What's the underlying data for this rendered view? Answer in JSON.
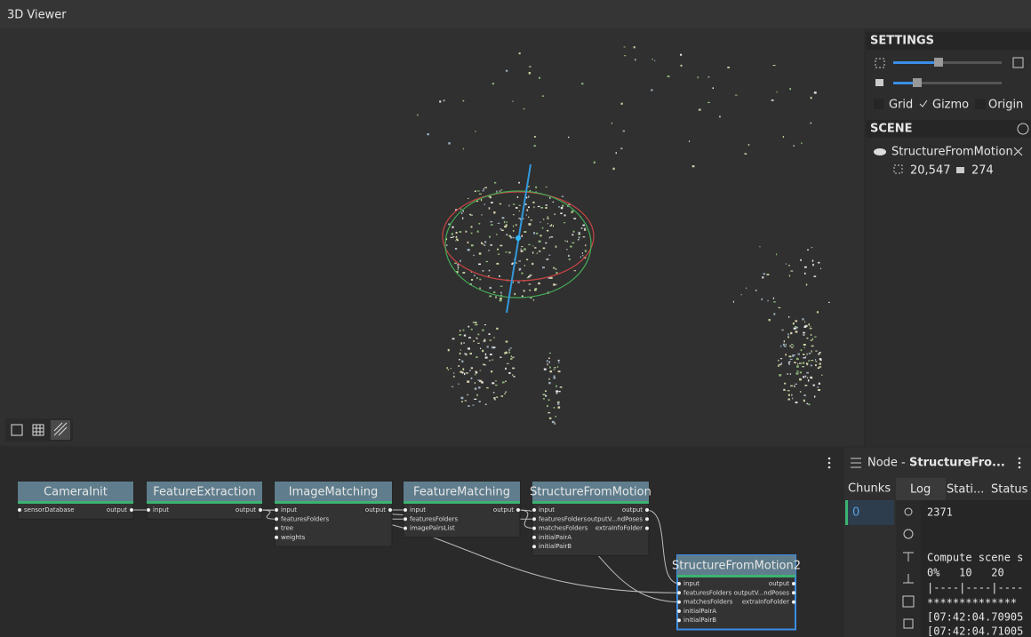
{
  "viewer": {
    "title": "3D Viewer"
  },
  "settings": {
    "title": "SETTINGS",
    "toggles": [
      "Grid",
      "Gizmo",
      "Origin"
    ]
  },
  "scene": {
    "title": "SCENE",
    "item": {
      "name": "StructureFromMotion",
      "points": "20,547",
      "cameras": "274"
    }
  },
  "node_panel": {
    "label": "Node -",
    "name": "StructureFro...",
    "tabs": [
      "Chunks",
      "Log",
      "Stati...",
      "Status"
    ],
    "chunks": [
      "0"
    ],
    "log": [
      "2371",
      "Compute scene s",
      "0%   10   20",
      "|----|----|----",
      "**************",
      "[07:42:04.70905",
      "[07:42:04.71005"
    ]
  },
  "graph": {
    "nodes": [
      {
        "title": "CameraInit",
        "inputs": [
          "sensorDatabase"
        ],
        "outputs": [
          "output"
        ]
      },
      {
        "title": "FeatureExtraction",
        "inputs": [
          "input"
        ],
        "outputs": [
          "output"
        ]
      },
      {
        "title": "ImageMatching",
        "inputs": [
          "input",
          "featuresFolders",
          "tree",
          "weights"
        ],
        "outputs": [
          "output"
        ]
      },
      {
        "title": "FeatureMatching",
        "inputs": [
          "input",
          "featuresFolders",
          "imagePairsList"
        ],
        "outputs": [
          "output"
        ]
      },
      {
        "title": "StructureFromMotion",
        "inputs": [
          "input",
          "featuresFolders",
          "matchesFolders",
          "initialPairA",
          "initialPairB"
        ],
        "outputs": [
          "output",
          "outputV...ndPoses",
          "extraInfoFolder"
        ]
      },
      {
        "title": "StructureFromMotion2",
        "inputs": [
          "input",
          "featuresFolders",
          "matchesFolders",
          "initialPairA",
          "initialPairB"
        ],
        "outputs": [
          "output",
          "outputV...ndPoses",
          "extraInfoFolder"
        ]
      }
    ]
  }
}
